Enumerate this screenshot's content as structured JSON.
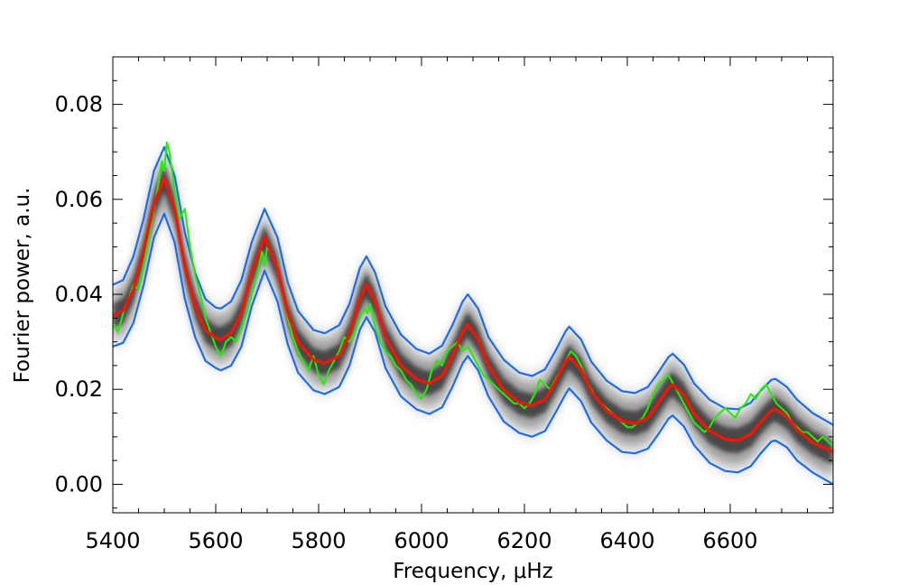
{
  "chart_data": {
    "type": "line",
    "title": "",
    "xlabel": "Frequency, μHz",
    "ylabel": "Fourier power, a.u.",
    "xlim": [
      5400,
      6800
    ],
    "ylim": [
      -0.006,
      0.09
    ],
    "x_ticks": [
      5400,
      5600,
      5800,
      6000,
      6200,
      6400,
      6600
    ],
    "x_tick_labels": [
      "5400",
      "5600",
      "5800",
      "6000",
      "6200",
      "6400",
      "6600"
    ],
    "y_ticks": [
      0.0,
      0.02,
      0.04,
      0.06,
      0.08
    ],
    "y_tick_labels": [
      "0.00",
      "0.02",
      "0.04",
      "0.06",
      "0.08"
    ],
    "grid": false,
    "legend": "none",
    "colors": {
      "data": "#22ee00",
      "model": "#ff1100",
      "bounds": "#1a6cf0",
      "density": "#000000"
    },
    "peaks": {
      "frequencies": [
        5500,
        5695,
        5893,
        6090,
        6287,
        6488,
        6688
      ],
      "model_heights": [
        0.0645,
        0.052,
        0.042,
        0.0336,
        0.0268,
        0.021,
        0.0158
      ]
    },
    "troughs": {
      "frequencies": [
        5400,
        5610,
        5812,
        6015,
        6215,
        6415,
        6615,
        6800
      ],
      "model_heights": [
        0.0355,
        0.0305,
        0.0255,
        0.0212,
        0.0165,
        0.0128,
        0.0092,
        0.0068
      ]
    },
    "series": [
      {
        "role": "model",
        "x": [
          5400,
          5420,
          5440,
          5460,
          5480,
          5500,
          5520,
          5540,
          5560,
          5580,
          5600,
          5610,
          5630,
          5650,
          5670,
          5695,
          5720,
          5740,
          5760,
          5790,
          5812,
          5840,
          5860,
          5880,
          5893,
          5910,
          5930,
          5960,
          5990,
          6015,
          6040,
          6060,
          6080,
          6090,
          6110,
          6130,
          6160,
          6190,
          6215,
          6240,
          6260,
          6280,
          6287,
          6310,
          6330,
          6360,
          6390,
          6415,
          6440,
          6460,
          6480,
          6488,
          6510,
          6530,
          6560,
          6590,
          6615,
          6640,
          6660,
          6680,
          6688,
          6710,
          6730,
          6760,
          6800
        ],
        "y": [
          0.0355,
          0.0365,
          0.041,
          0.049,
          0.059,
          0.0645,
          0.058,
          0.046,
          0.0375,
          0.0325,
          0.0308,
          0.0305,
          0.0318,
          0.036,
          0.0445,
          0.052,
          0.0455,
          0.036,
          0.03,
          0.0262,
          0.0255,
          0.027,
          0.0315,
          0.039,
          0.042,
          0.0385,
          0.031,
          0.025,
          0.0222,
          0.0212,
          0.0228,
          0.027,
          0.032,
          0.0336,
          0.0305,
          0.025,
          0.0198,
          0.0172,
          0.0165,
          0.0178,
          0.0215,
          0.0258,
          0.0268,
          0.0242,
          0.0195,
          0.0155,
          0.0133,
          0.0128,
          0.014,
          0.017,
          0.0203,
          0.021,
          0.0188,
          0.0148,
          0.0112,
          0.0095,
          0.0092,
          0.0105,
          0.0132,
          0.0155,
          0.0158,
          0.0142,
          0.0115,
          0.0088,
          0.0068
        ]
      },
      {
        "role": "upper-bound",
        "x": [
          5400,
          5420,
          5440,
          5460,
          5480,
          5500,
          5520,
          5540,
          5560,
          5580,
          5600,
          5610,
          5630,
          5650,
          5670,
          5695,
          5720,
          5740,
          5760,
          5790,
          5812,
          5840,
          5860,
          5880,
          5893,
          5910,
          5930,
          5960,
          5990,
          6015,
          6040,
          6060,
          6080,
          6090,
          6110,
          6130,
          6160,
          6190,
          6215,
          6240,
          6260,
          6280,
          6287,
          6310,
          6330,
          6360,
          6390,
          6415,
          6440,
          6460,
          6480,
          6488,
          6510,
          6530,
          6560,
          6590,
          6615,
          6640,
          6660,
          6680,
          6688,
          6710,
          6730,
          6760,
          6800
        ],
        "y": [
          0.042,
          0.043,
          0.048,
          0.056,
          0.066,
          0.071,
          0.065,
          0.053,
          0.0445,
          0.039,
          0.0372,
          0.037,
          0.0385,
          0.043,
          0.051,
          0.058,
          0.052,
          0.0425,
          0.0365,
          0.0325,
          0.0318,
          0.0335,
          0.038,
          0.0455,
          0.048,
          0.0445,
          0.0375,
          0.0315,
          0.0285,
          0.0275,
          0.0292,
          0.0335,
          0.0385,
          0.04,
          0.037,
          0.031,
          0.0262,
          0.0235,
          0.0228,
          0.0242,
          0.028,
          0.0322,
          0.0332,
          0.0305,
          0.0258,
          0.0218,
          0.0196,
          0.0192,
          0.0205,
          0.0235,
          0.0268,
          0.0275,
          0.0252,
          0.0212,
          0.0178,
          0.016,
          0.0158,
          0.0172,
          0.0198,
          0.022,
          0.0222,
          0.0205,
          0.0178,
          0.015,
          0.0125
        ]
      },
      {
        "role": "lower-bound",
        "x": [
          5400,
          5420,
          5440,
          5460,
          5480,
          5500,
          5520,
          5540,
          5560,
          5580,
          5600,
          5610,
          5630,
          5650,
          5670,
          5695,
          5720,
          5740,
          5760,
          5790,
          5812,
          5840,
          5860,
          5880,
          5893,
          5910,
          5930,
          5960,
          5990,
          6015,
          6040,
          6060,
          6080,
          6090,
          6110,
          6130,
          6160,
          6190,
          6215,
          6240,
          6260,
          6280,
          6287,
          6310,
          6330,
          6360,
          6390,
          6415,
          6440,
          6460,
          6480,
          6488,
          6510,
          6530,
          6560,
          6590,
          6615,
          6640,
          6660,
          6680,
          6688,
          6710,
          6730,
          6760,
          6800
        ],
        "y": [
          0.029,
          0.0298,
          0.034,
          0.042,
          0.052,
          0.057,
          0.051,
          0.039,
          0.031,
          0.026,
          0.0245,
          0.024,
          0.025,
          0.029,
          0.0375,
          0.045,
          0.0385,
          0.0295,
          0.0235,
          0.0198,
          0.019,
          0.0205,
          0.025,
          0.0325,
          0.0352,
          0.032,
          0.0245,
          0.0185,
          0.0158,
          0.0148,
          0.0162,
          0.0205,
          0.0255,
          0.027,
          0.024,
          0.0185,
          0.0132,
          0.0108,
          0.01,
          0.0112,
          0.015,
          0.019,
          0.0202,
          0.0175,
          0.013,
          0.0092,
          0.0068,
          0.0065,
          0.0075,
          0.0105,
          0.0138,
          0.0145,
          0.0122,
          0.0082,
          0.0045,
          0.0028,
          0.0025,
          0.0038,
          0.0066,
          0.009,
          0.0092,
          0.0078,
          0.005,
          0.0025,
          0.0
        ]
      },
      {
        "role": "data",
        "x": [
          5400,
          5410,
          5420,
          5430,
          5440,
          5450,
          5460,
          5470,
          5480,
          5490,
          5495,
          5500,
          5505,
          5510,
          5520,
          5530,
          5540,
          5550,
          5560,
          5570,
          5580,
          5590,
          5600,
          5610,
          5620,
          5630,
          5640,
          5650,
          5660,
          5670,
          5680,
          5690,
          5695,
          5700,
          5710,
          5720,
          5730,
          5740,
          5750,
          5760,
          5770,
          5780,
          5790,
          5800,
          5810,
          5820,
          5830,
          5840,
          5850,
          5860,
          5870,
          5880,
          5890,
          5895,
          5900,
          5910,
          5920,
          5930,
          5940,
          5950,
          5960,
          5970,
          5980,
          5990,
          6000,
          6010,
          6020,
          6030,
          6040,
          6050,
          6060,
          6070,
          6080,
          6090,
          6100,
          6110,
          6120,
          6130,
          6140,
          6150,
          6160,
          6170,
          6180,
          6190,
          6200,
          6210,
          6220,
          6230,
          6240,
          6250,
          6260,
          6270,
          6280,
          6290,
          6300,
          6310,
          6320,
          6330,
          6340,
          6350,
          6360,
          6370,
          6380,
          6390,
          6400,
          6410,
          6420,
          6430,
          6440,
          6450,
          6460,
          6470,
          6480,
          6490,
          6500,
          6510,
          6520,
          6530,
          6540,
          6550,
          6560,
          6570,
          6580,
          6590,
          6600,
          6610,
          6620,
          6630,
          6640,
          6650,
          6660,
          6670,
          6680,
          6690,
          6700,
          6710,
          6720,
          6730,
          6740,
          6750,
          6760,
          6770,
          6780,
          6790,
          6800
        ],
        "y": [
          0.034,
          0.032,
          0.036,
          0.039,
          0.042,
          0.041,
          0.046,
          0.052,
          0.058,
          0.064,
          0.068,
          0.066,
          0.072,
          0.07,
          0.062,
          0.056,
          0.058,
          0.05,
          0.044,
          0.04,
          0.035,
          0.032,
          0.029,
          0.027,
          0.03,
          0.031,
          0.03,
          0.033,
          0.036,
          0.04,
          0.044,
          0.049,
          0.046,
          0.05,
          0.048,
          0.046,
          0.04,
          0.035,
          0.031,
          0.028,
          0.026,
          0.024,
          0.027,
          0.023,
          0.021,
          0.024,
          0.026,
          0.028,
          0.031,
          0.03,
          0.032,
          0.035,
          0.037,
          0.036,
          0.038,
          0.033,
          0.03,
          0.028,
          0.027,
          0.025,
          0.024,
          0.022,
          0.021,
          0.019,
          0.018,
          0.02,
          0.024,
          0.026,
          0.025,
          0.028,
          0.029,
          0.03,
          0.028,
          0.029,
          0.027,
          0.025,
          0.023,
          0.022,
          0.021,
          0.02,
          0.019,
          0.018,
          0.017,
          0.017,
          0.016,
          0.017,
          0.019,
          0.022,
          0.021,
          0.02,
          0.022,
          0.024,
          0.026,
          0.028,
          0.027,
          0.025,
          0.022,
          0.02,
          0.018,
          0.017,
          0.016,
          0.015,
          0.014,
          0.013,
          0.012,
          0.012,
          0.013,
          0.014,
          0.016,
          0.019,
          0.021,
          0.022,
          0.023,
          0.021,
          0.019,
          0.017,
          0.015,
          0.013,
          0.012,
          0.011,
          0.012,
          0.014,
          0.015,
          0.016,
          0.015,
          0.014,
          0.016,
          0.017,
          0.019,
          0.018,
          0.02,
          0.021,
          0.019,
          0.017,
          0.016,
          0.015,
          0.013,
          0.012,
          0.011,
          0.011,
          0.01,
          0.009,
          0.01,
          0.009,
          0.008
        ]
      }
    ]
  }
}
